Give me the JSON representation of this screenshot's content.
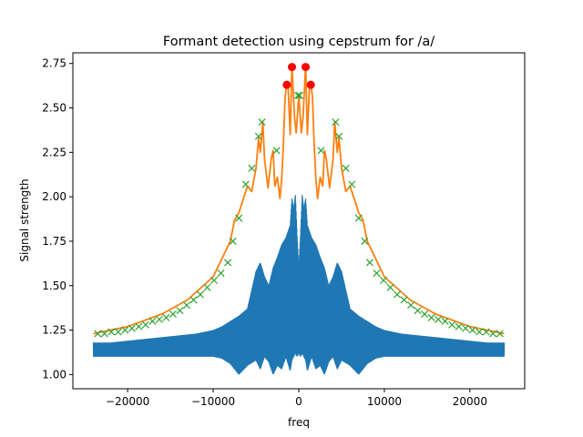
{
  "chart_data": {
    "type": "line",
    "title": "Formant detection using cepstrum for /a/",
    "xlabel": "freq",
    "ylabel": "Signal strength",
    "xlim": [
      -26400,
      26400
    ],
    "ylim": [
      0.92,
      2.81
    ],
    "xticks": [
      -20000,
      -10000,
      0,
      10000,
      20000
    ],
    "xtick_labels": [
      "−20000",
      "−10000",
      "0",
      "10000",
      "20000"
    ],
    "yticks": [
      1.0,
      1.25,
      1.5,
      1.75,
      2.0,
      2.25,
      2.5,
      2.75
    ],
    "ytick_labels": [
      "1.00",
      "1.25",
      "1.50",
      "1.75",
      "2.00",
      "2.25",
      "2.50",
      "2.75"
    ],
    "grid": false,
    "colors": {
      "spectrum": "#1f77b4",
      "envelope": "#ff7f0e",
      "peaks": "#2ca02c",
      "formants": "#ff0000"
    },
    "envelope": {
      "x": [
        -24000,
        -20000,
        -16000,
        -13000,
        -10000,
        -8000,
        -7500,
        -7000,
        -6000,
        -5500,
        -5000,
        -4700,
        -4500,
        -4200,
        -4000,
        -3600,
        -3200,
        -3000,
        -2800,
        -2500,
        -2200,
        -2000,
        -1800,
        -1600,
        -1400,
        -1250,
        -1000,
        -800,
        -500,
        -300,
        0,
        300,
        500,
        800,
        1000,
        1250,
        1400,
        1600,
        1800,
        2000,
        2200,
        2500,
        2800,
        3000,
        3200,
        3600,
        4000,
        4200,
        4500,
        4700,
        5000,
        5500,
        6000,
        7000,
        7500,
        8000,
        10000,
        13000,
        16000,
        20000,
        24000
      ],
      "y": [
        1.23,
        1.27,
        1.34,
        1.42,
        1.55,
        1.75,
        1.87,
        1.91,
        2.06,
        2.03,
        2.16,
        2.33,
        2.25,
        2.42,
        2.21,
        2.05,
        2.22,
        2.26,
        2.06,
        2.11,
        1.99,
        2.1,
        2.29,
        2.56,
        2.64,
        2.62,
        2.35,
        2.74,
        2.45,
        2.36,
        2.57,
        2.36,
        2.45,
        2.74,
        2.35,
        2.62,
        2.64,
        2.56,
        2.29,
        2.1,
        1.99,
        2.11,
        2.06,
        2.26,
        2.22,
        2.05,
        2.21,
        2.42,
        2.25,
        2.33,
        2.16,
        2.03,
        2.06,
        1.91,
        1.87,
        1.75,
        1.55,
        1.42,
        1.34,
        1.27,
        1.23
      ]
    },
    "spectrum": {
      "x": [
        -24000,
        -22000,
        -20000,
        -18000,
        -16000,
        -14000,
        -12000,
        -10000,
        -9000,
        -8000,
        -7000,
        -6000,
        -5000,
        -4500,
        -4000,
        -3500,
        -3000,
        -2500,
        -2000,
        -1500,
        -1000,
        -800,
        -600,
        -400,
        -200,
        0,
        200,
        400,
        600,
        800,
        1000,
        1500,
        2000,
        2500,
        3000,
        3500,
        4000,
        4500,
        5000,
        6000,
        7000,
        8000,
        9000,
        10000,
        12000,
        14000,
        16000,
        18000,
        20000,
        22000,
        24000
      ],
      "low": [
        1.1,
        1.1,
        1.1,
        1.1,
        1.1,
        1.1,
        1.1,
        1.1,
        1.09,
        1.06,
        1.0,
        1.05,
        1.08,
        1.03,
        1.1,
        1.07,
        1.0,
        1.05,
        1.03,
        1.1,
        1.02,
        1.08,
        1.1,
        1.12,
        1.1,
        1.12,
        1.1,
        1.12,
        1.1,
        1.08,
        1.02,
        1.1,
        1.03,
        1.05,
        1.0,
        1.07,
        1.1,
        1.03,
        1.08,
        1.05,
        1.0,
        1.06,
        1.09,
        1.1,
        1.1,
        1.1,
        1.1,
        1.1,
        1.1,
        1.1,
        1.1
      ],
      "high": [
        1.18,
        1.18,
        1.19,
        1.2,
        1.21,
        1.22,
        1.23,
        1.25,
        1.27,
        1.3,
        1.33,
        1.37,
        1.58,
        1.63,
        1.55,
        1.5,
        1.6,
        1.66,
        1.73,
        1.77,
        1.84,
        1.99,
        1.93,
        2.01,
        1.78,
        1.6,
        1.78,
        2.01,
        1.93,
        1.99,
        1.84,
        1.77,
        1.73,
        1.66,
        1.6,
        1.5,
        1.55,
        1.63,
        1.58,
        1.37,
        1.33,
        1.3,
        1.27,
        1.25,
        1.23,
        1.22,
        1.21,
        1.2,
        1.19,
        1.18,
        1.18
      ]
    },
    "peaks": {
      "x": [
        -23500,
        -22700,
        -21900,
        -21100,
        -20300,
        -19500,
        -18700,
        -17900,
        -17100,
        -16300,
        -15500,
        -14700,
        -13900,
        -13100,
        -12300,
        -11500,
        -10700,
        -9900,
        -9100,
        -8300,
        -7700,
        -7000,
        -6200,
        -5500,
        -4700,
        -4300,
        -2600,
        -100,
        100,
        2600,
        4300,
        4700,
        5500,
        6200,
        7000,
        7700,
        8300,
        9100,
        9900,
        10700,
        11500,
        12300,
        13100,
        13900,
        14700,
        15500,
        16300,
        17100,
        17900,
        18700,
        19500,
        20300,
        21100,
        21900,
        22700,
        23500
      ],
      "y": [
        1.23,
        1.23,
        1.24,
        1.24,
        1.25,
        1.26,
        1.27,
        1.28,
        1.3,
        1.31,
        1.32,
        1.34,
        1.36,
        1.39,
        1.42,
        1.45,
        1.49,
        1.53,
        1.57,
        1.63,
        1.75,
        1.88,
        2.07,
        2.16,
        2.34,
        2.42,
        2.26,
        2.57,
        2.57,
        2.26,
        2.42,
        2.34,
        2.16,
        2.07,
        1.88,
        1.75,
        1.63,
        1.57,
        1.53,
        1.49,
        1.45,
        1.42,
        1.39,
        1.36,
        1.34,
        1.32,
        1.31,
        1.3,
        1.28,
        1.27,
        1.26,
        1.25,
        1.24,
        1.24,
        1.23,
        1.23
      ]
    },
    "formants": {
      "x": [
        -1400,
        -800,
        800,
        1400
      ],
      "y": [
        2.63,
        2.73,
        2.73,
        2.63
      ]
    }
  }
}
